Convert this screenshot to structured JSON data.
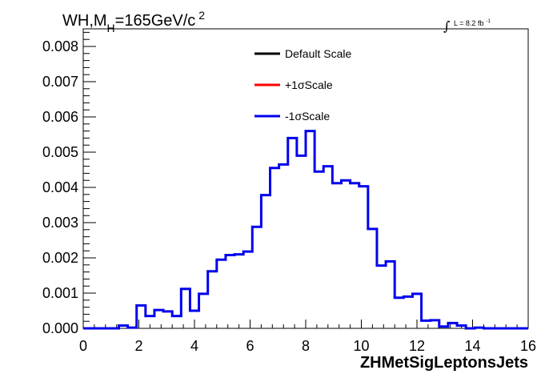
{
  "chart_data": {
    "type": "line",
    "title": {
      "prefix": "WH,M",
      "sub": "H",
      "main": "=165GeV/c",
      "sup": "2"
    },
    "lumi": {
      "integral": "∫",
      "text": "L = 8.2 fb",
      "sup": "-1"
    },
    "xlabel": "ZHMetSigLeptonsJets",
    "ylabel": "",
    "xlim": [
      0,
      16
    ],
    "ylim": [
      0,
      0.0085
    ],
    "x_ticks": [
      {
        "value": 0,
        "label": "0"
      },
      {
        "value": 2,
        "label": "2"
      },
      {
        "value": 4,
        "label": "4"
      },
      {
        "value": 6,
        "label": "6"
      },
      {
        "value": 8,
        "label": "8"
      },
      {
        "value": 10,
        "label": "10"
      },
      {
        "value": 12,
        "label": "12"
      },
      {
        "value": 14,
        "label": "14"
      },
      {
        "value": 16,
        "label": "16"
      }
    ],
    "y_ticks": [
      {
        "value": 0.0,
        "label": "0.000"
      },
      {
        "value": 0.001,
        "label": "0.001"
      },
      {
        "value": 0.002,
        "label": "0.002"
      },
      {
        "value": 0.003,
        "label": "0.003"
      },
      {
        "value": 0.004,
        "label": "0.004"
      },
      {
        "value": 0.005,
        "label": "0.005"
      },
      {
        "value": 0.006,
        "label": "0.006"
      },
      {
        "value": 0.007,
        "label": "0.007"
      },
      {
        "value": 0.008,
        "label": "0.008"
      }
    ],
    "bin_width": 0.32,
    "legend": {
      "placement": "top-center",
      "entries": [
        {
          "label": "Default Scale",
          "color": "#000000"
        },
        {
          "label": "+1σScale",
          "color": "#ff0000"
        },
        {
          "label": "-1σScale",
          "color": "#0000ee"
        }
      ]
    },
    "series": [
      {
        "name": "-1σScale",
        "color": "#0000ee",
        "bin_edges": [
          0,
          0.32,
          0.64,
          0.96,
          1.28,
          1.6,
          1.92,
          2.24,
          2.56,
          2.88,
          3.2,
          3.52,
          3.84,
          4.16,
          4.48,
          4.8,
          5.12,
          5.44,
          5.76,
          6.08,
          6.4,
          6.72,
          7.04,
          7.36,
          7.68,
          8.0,
          8.32,
          8.64,
          8.96,
          9.28,
          9.6,
          9.92,
          10.24,
          10.56,
          10.88,
          11.2,
          11.52,
          11.84,
          12.16,
          12.48,
          12.8,
          13.12,
          13.44,
          13.76,
          14.08,
          14.4,
          14.72,
          15.04,
          15.36,
          15.68,
          16.0
        ],
        "values": [
          0.0,
          0.0,
          0.0,
          0.0,
          8e-05,
          2e-05,
          0.00065,
          0.00035,
          0.00052,
          0.00048,
          0.00035,
          0.00112,
          0.0005,
          0.00098,
          0.00162,
          0.00195,
          0.00208,
          0.0021,
          0.00218,
          0.00288,
          0.00378,
          0.00455,
          0.00465,
          0.0054,
          0.0049,
          0.0056,
          0.00445,
          0.0046,
          0.00412,
          0.0042,
          0.00412,
          0.00403,
          0.00282,
          0.00178,
          0.0019,
          0.00087,
          0.0009,
          0.00098,
          0.00022,
          0.00023,
          5e-05,
          0.00015,
          8e-05,
          0.0,
          2e-05,
          0.0,
          0.0,
          0.0,
          0.0,
          0.0
        ]
      }
    ]
  }
}
